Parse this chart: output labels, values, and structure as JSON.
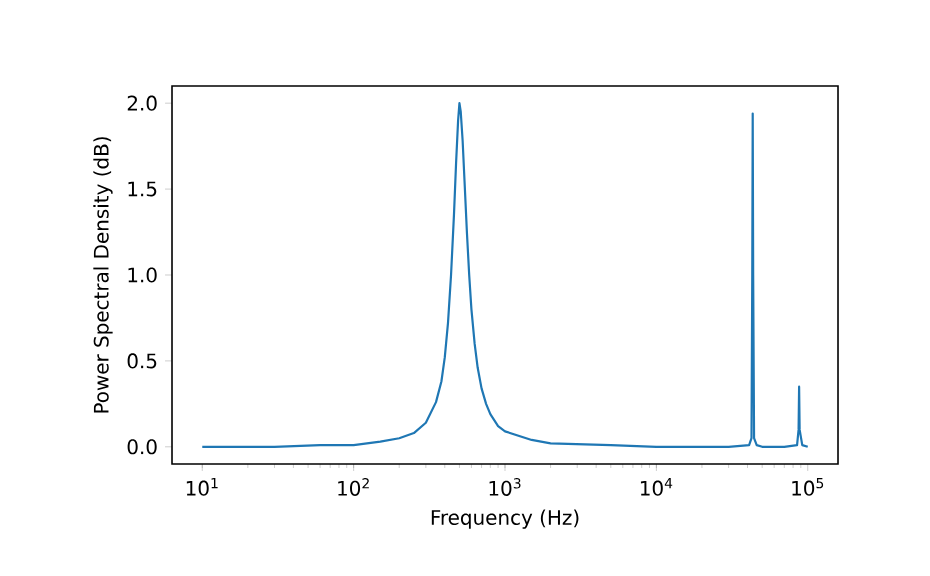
{
  "chart_data": {
    "type": "line",
    "xlabel": "Frequency (Hz)",
    "ylabel": "Power Spectral Density (dB)",
    "log": "x",
    "grid": false,
    "xlim": [
      6.31,
      158489
    ],
    "ylim": [
      -0.1,
      2.1
    ],
    "xticks": [
      {
        "value": 10,
        "label": "10$^{1}$"
      },
      {
        "value": 100,
        "label": "10$^{2}$"
      },
      {
        "value": 1000,
        "label": "10$^{3}$"
      },
      {
        "value": 10000,
        "label": "10$^{4}$"
      },
      {
        "value": 100000,
        "label": "10$^{5}$"
      }
    ],
    "yticks": [
      {
        "value": 0,
        "label": "0.0"
      },
      {
        "value": 0.5,
        "label": "0.5"
      },
      {
        "value": 1,
        "label": "1.0"
      },
      {
        "value": 1.5,
        "label": "1.5"
      },
      {
        "value": 2,
        "label": "2.0"
      }
    ],
    "series": [
      {
        "color": "#1f77b4",
        "x": [
          10,
          30,
          60,
          100,
          150,
          200,
          250,
          300,
          350,
          380,
          400,
          420,
          440,
          460,
          475,
          490,
          500,
          510,
          525,
          540,
          560,
          580,
          600,
          630,
          660,
          700,
          750,
          800,
          900,
          1000,
          1500,
          2000,
          5000,
          10000,
          30000,
          41000,
          42500,
          43000,
          43300,
          43600,
          44200,
          46000,
          50000,
          70000,
          85000,
          87000,
          87700,
          88400,
          92000,
          100000
        ],
        "values": [
          0.0,
          0.0,
          0.01,
          0.01,
          0.03,
          0.05,
          0.08,
          0.14,
          0.26,
          0.38,
          0.52,
          0.72,
          1.0,
          1.35,
          1.65,
          1.9,
          2.0,
          1.95,
          1.78,
          1.55,
          1.25,
          1.0,
          0.8,
          0.6,
          0.46,
          0.34,
          0.25,
          0.19,
          0.12,
          0.09,
          0.04,
          0.02,
          0.01,
          0.0,
          0.0,
          0.01,
          0.05,
          1.0,
          1.94,
          1.0,
          0.05,
          0.01,
          0.0,
          0.0,
          0.01,
          0.1,
          0.35,
          0.1,
          0.01,
          0.0
        ]
      }
    ]
  }
}
